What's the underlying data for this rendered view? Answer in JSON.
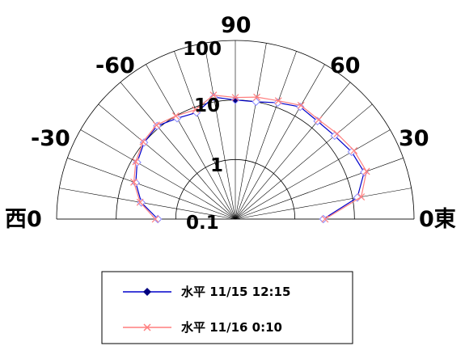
{
  "chart_data": {
    "type": "polar-semicircle",
    "radial_axis": {
      "scale": "log",
      "range": [
        0.1,
        100
      ],
      "ticks": [
        "0.1",
        "1",
        "10",
        "100"
      ]
    },
    "angle_axis": {
      "range_deg": [
        -90,
        90
      ],
      "spoke_step_deg": 10,
      "labels": {
        "west": "西0",
        "neg60": "-60",
        "neg30": "-30",
        "pos90": "90",
        "pos60": "60",
        "pos30": "30",
        "east": "0東"
      }
    },
    "series": [
      {
        "name": "水平 11/15 12:15",
        "color": "#0000cc",
        "marker": "diamond",
        "note": "marker values are visible only as polar points",
        "points": [
          [
            -90,
            2
          ],
          [
            -80,
            4
          ],
          [
            -70,
            6
          ],
          [
            -60,
            8
          ],
          [
            -50,
            10
          ],
          [
            -40,
            11
          ],
          [
            -30,
            9
          ],
          [
            -20,
            8
          ],
          [
            -10,
            12
          ],
          [
            0,
            10
          ],
          [
            10,
            10
          ],
          [
            20,
            12
          ],
          [
            30,
            15
          ],
          [
            40,
            14
          ],
          [
            50,
            15
          ],
          [
            60,
            18
          ],
          [
            70,
            20
          ],
          [
            80,
            12
          ],
          [
            90,
            3
          ]
        ]
      },
      {
        "name": "水平 11/16 0:10",
        "color": "#ff7f7f",
        "marker": "x",
        "points": [
          [
            -90,
            2.2
          ],
          [
            -80,
            4.2
          ],
          [
            -70,
            6.5
          ],
          [
            -60,
            8.5
          ],
          [
            -50,
            10.5
          ],
          [
            -40,
            11.5
          ],
          [
            -30,
            10
          ],
          [
            -20,
            9
          ],
          [
            -10,
            13
          ],
          [
            0,
            11
          ],
          [
            10,
            12
          ],
          [
            20,
            13
          ],
          [
            30,
            16
          ],
          [
            40,
            15
          ],
          [
            50,
            17
          ],
          [
            60,
            20
          ],
          [
            70,
            22
          ],
          [
            80,
            14
          ],
          [
            90,
            3.2
          ]
        ]
      }
    ],
    "legend": [
      {
        "label": "水平 11/15 12:15"
      },
      {
        "label": "水平 11/16 0:10"
      }
    ]
  }
}
